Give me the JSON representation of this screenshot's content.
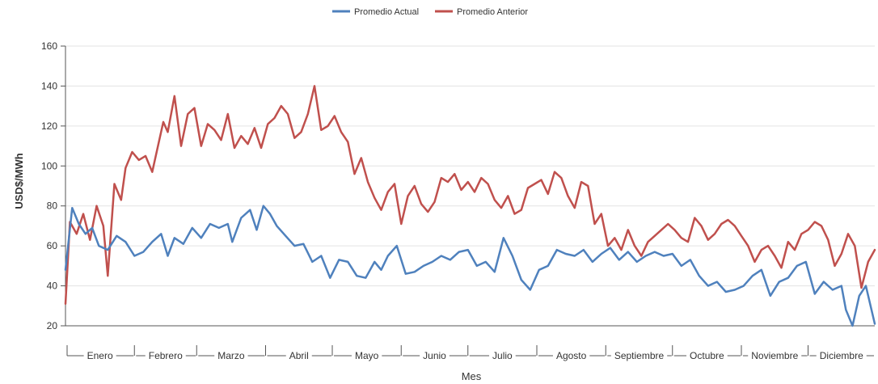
{
  "chart_data": {
    "type": "line",
    "title": "",
    "xlabel": "Mes",
    "ylabel": "USD$/MWh",
    "ylim": [
      20,
      160
    ],
    "yticks": [
      20,
      40,
      60,
      80,
      100,
      120,
      140,
      160
    ],
    "grid": "horizontal",
    "legend_position": "top-center",
    "x_units": "day of year (1-365)",
    "categories": [
      "Enero",
      "Febrero",
      "Marzo",
      "Abril",
      "Mayo",
      "Junio",
      "Julio",
      "Agosto",
      "Septiembre",
      "Octubre",
      "Noviembre",
      "Diciembre"
    ],
    "series": [
      {
        "name": "Promedio Actual",
        "color": "#4f81bd",
        "points": [
          [
            1,
            48
          ],
          [
            4,
            79
          ],
          [
            7,
            71
          ],
          [
            10,
            66
          ],
          [
            13,
            69
          ],
          [
            16,
            60
          ],
          [
            20,
            58
          ],
          [
            24,
            65
          ],
          [
            28,
            62
          ],
          [
            32,
            55
          ],
          [
            36,
            57
          ],
          [
            40,
            62
          ],
          [
            44,
            66
          ],
          [
            47,
            55
          ],
          [
            50,
            64
          ],
          [
            54,
            61
          ],
          [
            58,
            69
          ],
          [
            62,
            64
          ],
          [
            66,
            71
          ],
          [
            70,
            69
          ],
          [
            74,
            71
          ],
          [
            76,
            62
          ],
          [
            80,
            74
          ],
          [
            84,
            78
          ],
          [
            87,
            68
          ],
          [
            90,
            80
          ],
          [
            93,
            76
          ],
          [
            96,
            70
          ],
          [
            100,
            65
          ],
          [
            104,
            60
          ],
          [
            108,
            61
          ],
          [
            112,
            52
          ],
          [
            116,
            55
          ],
          [
            120,
            44
          ],
          [
            124,
            53
          ],
          [
            128,
            52
          ],
          [
            132,
            45
          ],
          [
            136,
            44
          ],
          [
            140,
            52
          ],
          [
            143,
            48
          ],
          [
            146,
            55
          ],
          [
            150,
            60
          ],
          [
            154,
            46
          ],
          [
            158,
            47
          ],
          [
            162,
            50
          ],
          [
            166,
            52
          ],
          [
            170,
            55
          ],
          [
            174,
            53
          ],
          [
            178,
            57
          ],
          [
            182,
            58
          ],
          [
            186,
            50
          ],
          [
            190,
            52
          ],
          [
            194,
            47
          ],
          [
            198,
            64
          ],
          [
            202,
            55
          ],
          [
            206,
            43
          ],
          [
            210,
            38
          ],
          [
            214,
            48
          ],
          [
            218,
            50
          ],
          [
            222,
            58
          ],
          [
            226,
            56
          ],
          [
            230,
            55
          ],
          [
            234,
            58
          ],
          [
            238,
            52
          ],
          [
            242,
            56
          ],
          [
            246,
            59
          ],
          [
            250,
            53
          ],
          [
            254,
            57
          ],
          [
            258,
            52
          ],
          [
            262,
            55
          ],
          [
            266,
            57
          ],
          [
            270,
            55
          ],
          [
            274,
            56
          ],
          [
            278,
            50
          ],
          [
            282,
            53
          ],
          [
            286,
            45
          ],
          [
            290,
            40
          ],
          [
            294,
            42
          ],
          [
            298,
            37
          ],
          [
            302,
            38
          ],
          [
            306,
            40
          ],
          [
            310,
            45
          ],
          [
            314,
            48
          ],
          [
            318,
            35
          ],
          [
            322,
            42
          ],
          [
            326,
            44
          ],
          [
            330,
            50
          ],
          [
            334,
            52
          ],
          [
            338,
            36
          ],
          [
            342,
            42
          ],
          [
            346,
            38
          ],
          [
            350,
            40
          ],
          [
            352,
            28
          ],
          [
            355,
            20
          ],
          [
            358,
            35
          ],
          [
            361,
            40
          ],
          [
            365,
            21
          ]
        ]
      },
      {
        "name": "Promedio Anterior",
        "color": "#c0504d",
        "points": [
          [
            1,
            31
          ],
          [
            3,
            72
          ],
          [
            6,
            66
          ],
          [
            9,
            76
          ],
          [
            12,
            63
          ],
          [
            15,
            80
          ],
          [
            18,
            70
          ],
          [
            20,
            45
          ],
          [
            23,
            91
          ],
          [
            26,
            83
          ],
          [
            28,
            99
          ],
          [
            31,
            107
          ],
          [
            34,
            103
          ],
          [
            37,
            105
          ],
          [
            40,
            97
          ],
          [
            43,
            112
          ],
          [
            45,
            122
          ],
          [
            47,
            117
          ],
          [
            50,
            135
          ],
          [
            53,
            110
          ],
          [
            56,
            126
          ],
          [
            59,
            129
          ],
          [
            62,
            110
          ],
          [
            65,
            121
          ],
          [
            68,
            118
          ],
          [
            71,
            113
          ],
          [
            74,
            126
          ],
          [
            77,
            109
          ],
          [
            80,
            115
          ],
          [
            83,
            111
          ],
          [
            86,
            119
          ],
          [
            89,
            109
          ],
          [
            92,
            121
          ],
          [
            95,
            124
          ],
          [
            98,
            130
          ],
          [
            101,
            126
          ],
          [
            104,
            114
          ],
          [
            107,
            117
          ],
          [
            110,
            126
          ],
          [
            113,
            140
          ],
          [
            116,
            118
          ],
          [
            119,
            120
          ],
          [
            122,
            125
          ],
          [
            125,
            117
          ],
          [
            128,
            112
          ],
          [
            131,
            96
          ],
          [
            134,
            104
          ],
          [
            137,
            92
          ],
          [
            140,
            84
          ],
          [
            143,
            78
          ],
          [
            146,
            87
          ],
          [
            149,
            91
          ],
          [
            152,
            71
          ],
          [
            155,
            85
          ],
          [
            158,
            90
          ],
          [
            161,
            81
          ],
          [
            164,
            77
          ],
          [
            167,
            82
          ],
          [
            170,
            94
          ],
          [
            173,
            92
          ],
          [
            176,
            96
          ],
          [
            179,
            88
          ],
          [
            182,
            92
          ],
          [
            185,
            87
          ],
          [
            188,
            94
          ],
          [
            191,
            91
          ],
          [
            194,
            83
          ],
          [
            197,
            79
          ],
          [
            200,
            85
          ],
          [
            203,
            76
          ],
          [
            206,
            78
          ],
          [
            209,
            89
          ],
          [
            212,
            91
          ],
          [
            215,
            93
          ],
          [
            218,
            86
          ],
          [
            221,
            97
          ],
          [
            224,
            94
          ],
          [
            227,
            85
          ],
          [
            230,
            79
          ],
          [
            233,
            92
          ],
          [
            236,
            90
          ],
          [
            239,
            71
          ],
          [
            242,
            76
          ],
          [
            245,
            60
          ],
          [
            248,
            64
          ],
          [
            251,
            58
          ],
          [
            254,
            68
          ],
          [
            257,
            60
          ],
          [
            260,
            55
          ],
          [
            263,
            62
          ],
          [
            266,
            65
          ],
          [
            269,
            68
          ],
          [
            272,
            71
          ],
          [
            275,
            68
          ],
          [
            278,
            64
          ],
          [
            281,
            62
          ],
          [
            284,
            74
          ],
          [
            287,
            70
          ],
          [
            290,
            63
          ],
          [
            293,
            66
          ],
          [
            296,
            71
          ],
          [
            299,
            73
          ],
          [
            302,
            70
          ],
          [
            305,
            65
          ],
          [
            308,
            60
          ],
          [
            311,
            52
          ],
          [
            314,
            58
          ],
          [
            317,
            60
          ],
          [
            320,
            55
          ],
          [
            323,
            49
          ],
          [
            326,
            62
          ],
          [
            329,
            58
          ],
          [
            332,
            66
          ],
          [
            335,
            68
          ],
          [
            338,
            72
          ],
          [
            341,
            70
          ],
          [
            344,
            63
          ],
          [
            347,
            50
          ],
          [
            350,
            56
          ],
          [
            353,
            66
          ],
          [
            356,
            60
          ],
          [
            359,
            39
          ],
          [
            362,
            52
          ],
          [
            365,
            58
          ]
        ]
      }
    ]
  }
}
